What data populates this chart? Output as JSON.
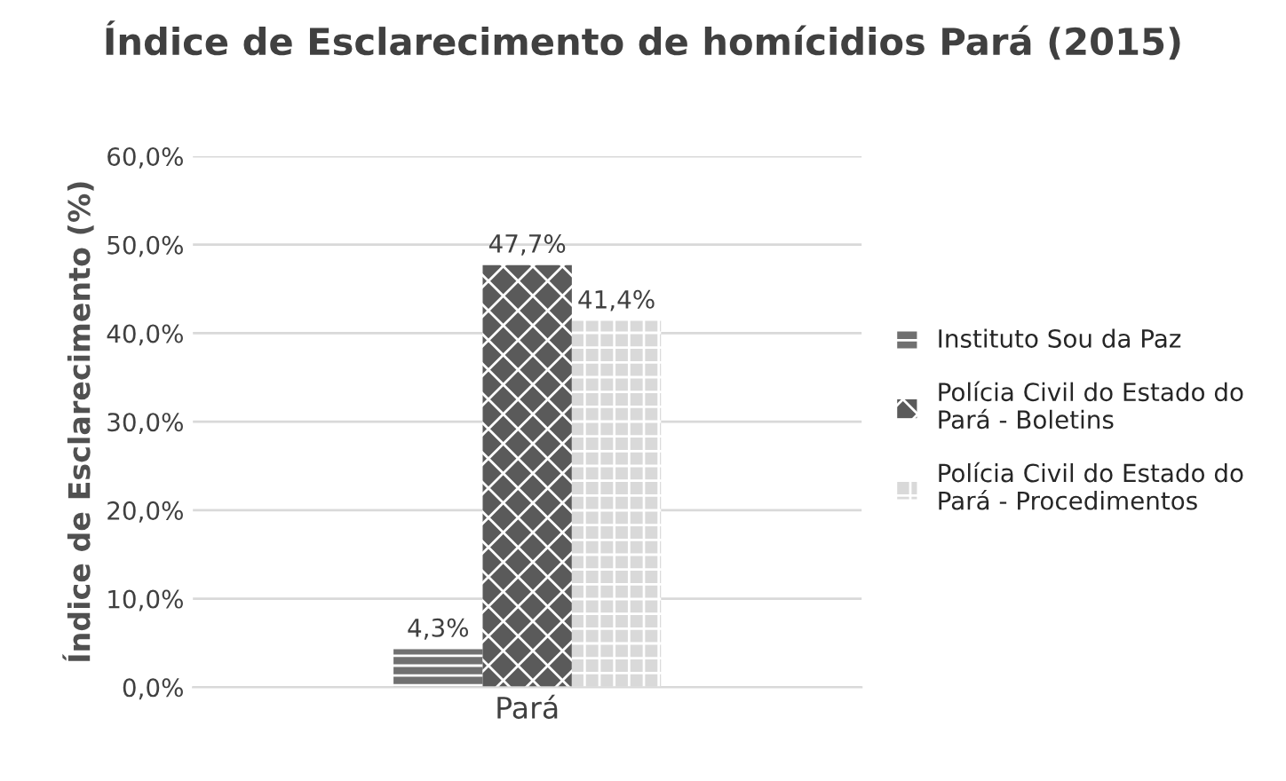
{
  "chart_data": {
    "type": "bar",
    "title": "Índice de Esclarecimento de homícidios Pará (2015)",
    "ylabel": "Índice de Esclarecimento (%)",
    "categories": [
      "Pará"
    ],
    "series": [
      {
        "name": "Instituto Sou da Paz",
        "color": "#707070",
        "values": [
          4.3
        ],
        "value_labels": [
          "4,3%"
        ]
      },
      {
        "name": "Polícia Civil do Estado do Pará - Boletins",
        "color": "#5a5a5a",
        "values": [
          47.7
        ],
        "value_labels": [
          "47,7%"
        ]
      },
      {
        "name": "Polícia Civil do Estado do Pará - Procedimentos",
        "color": "#d9d9d9",
        "values": [
          41.4
        ],
        "value_labels": [
          "41,4%"
        ]
      }
    ],
    "ylim": [
      0,
      60
    ],
    "yticks": [
      {
        "value": 0,
        "label": "0,0%"
      },
      {
        "value": 10,
        "label": "10,0%"
      },
      {
        "value": 20,
        "label": "20,0%"
      },
      {
        "value": 30,
        "label": "30,0%"
      },
      {
        "value": 40,
        "label": "40,0%"
      },
      {
        "value": 50,
        "label": "50,0%"
      },
      {
        "value": 60,
        "label": "60,0%"
      }
    ],
    "grid": "y",
    "legend": "right"
  }
}
